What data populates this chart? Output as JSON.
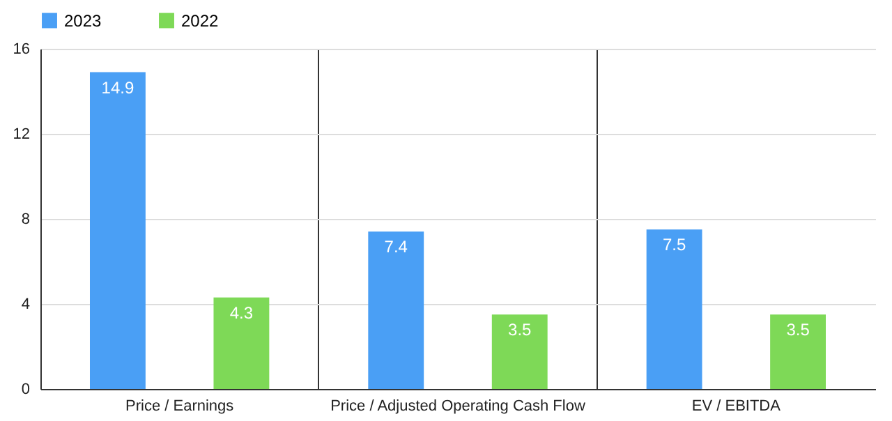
{
  "chart_data": {
    "type": "bar",
    "categories": [
      "Price / Earnings",
      "Price / Adjusted Operating Cash Flow",
      "EV / EBITDA"
    ],
    "series": [
      {
        "name": "2023",
        "color": "#4a9ff5",
        "values": [
          14.9,
          7.4,
          7.5
        ]
      },
      {
        "name": "2022",
        "color": "#7ed957",
        "values": [
          4.3,
          3.5,
          3.5
        ]
      }
    ],
    "ylim": [
      0,
      16
    ],
    "yticks": [
      0,
      4,
      8,
      12,
      16
    ],
    "grid": true,
    "legend": "top",
    "data_labels": true
  }
}
